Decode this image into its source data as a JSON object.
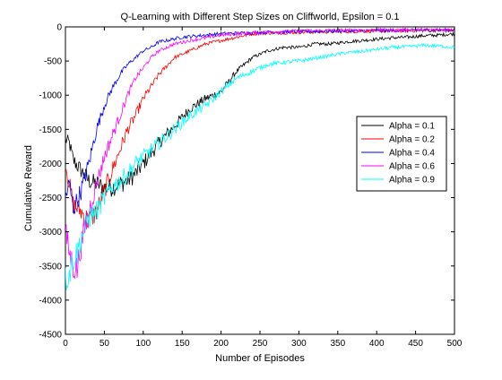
{
  "chart_data": {
    "type": "line",
    "title": "Q-Learning with Different Step Sizes on Cliffworld, Epsilon = 0.1",
    "xlabel": "Number of Episodes",
    "ylabel": "Cumulative Reward",
    "xlim": [
      0,
      500
    ],
    "ylim": [
      -4500,
      0
    ],
    "xticks": [
      0,
      50,
      100,
      150,
      200,
      250,
      300,
      350,
      400,
      450,
      500
    ],
    "yticks": [
      -4500,
      -4000,
      -3500,
      -3000,
      -2500,
      -2000,
      -1500,
      -1000,
      -500,
      0
    ],
    "grid": false,
    "legend_position": "right",
    "series": [
      {
        "name": "Alpha = 0.1",
        "color": "#000000",
        "points": [
          [
            0,
            -1650
          ],
          [
            5,
            -1700
          ],
          [
            10,
            -1950
          ],
          [
            20,
            -2100
          ],
          [
            30,
            -2250
          ],
          [
            40,
            -2300
          ],
          [
            50,
            -2350
          ],
          [
            60,
            -2350
          ],
          [
            70,
            -2300
          ],
          [
            80,
            -2250
          ],
          [
            90,
            -2150
          ],
          [
            100,
            -2000
          ],
          [
            120,
            -1700
          ],
          [
            140,
            -1450
          ],
          [
            160,
            -1200
          ],
          [
            180,
            -1050
          ],
          [
            200,
            -950
          ],
          [
            220,
            -650
          ],
          [
            240,
            -450
          ],
          [
            260,
            -350
          ],
          [
            280,
            -300
          ],
          [
            300,
            -300
          ],
          [
            320,
            -250
          ],
          [
            340,
            -250
          ],
          [
            360,
            -220
          ],
          [
            380,
            -200
          ],
          [
            400,
            -180
          ],
          [
            420,
            -160
          ],
          [
            440,
            -150
          ],
          [
            460,
            -130
          ],
          [
            480,
            -120
          ],
          [
            500,
            -100
          ]
        ]
      },
      {
        "name": "Alpha = 0.2",
        "color": "#ff0000",
        "points": [
          [
            0,
            -2000
          ],
          [
            5,
            -2300
          ],
          [
            10,
            -2600
          ],
          [
            20,
            -2700
          ],
          [
            30,
            -2850
          ],
          [
            40,
            -2700
          ],
          [
            50,
            -2400
          ],
          [
            60,
            -2100
          ],
          [
            70,
            -1800
          ],
          [
            80,
            -1500
          ],
          [
            90,
            -1300
          ],
          [
            100,
            -1050
          ],
          [
            120,
            -700
          ],
          [
            140,
            -450
          ],
          [
            160,
            -350
          ],
          [
            180,
            -250
          ],
          [
            200,
            -200
          ],
          [
            220,
            -150
          ],
          [
            240,
            -100
          ],
          [
            260,
            -90
          ],
          [
            300,
            -80
          ],
          [
            350,
            -70
          ],
          [
            400,
            -60
          ],
          [
            450,
            -55
          ],
          [
            500,
            -50
          ]
        ]
      },
      {
        "name": "Alpha = 0.4",
        "color": "#0000ff",
        "points": [
          [
            0,
            -2500
          ],
          [
            5,
            -2300
          ],
          [
            10,
            -2650
          ],
          [
            15,
            -2550
          ],
          [
            20,
            -2400
          ],
          [
            30,
            -2000
          ],
          [
            40,
            -1500
          ],
          [
            50,
            -1150
          ],
          [
            60,
            -900
          ],
          [
            70,
            -700
          ],
          [
            80,
            -550
          ],
          [
            90,
            -450
          ],
          [
            100,
            -350
          ],
          [
            110,
            -300
          ],
          [
            120,
            -220
          ],
          [
            130,
            -200
          ],
          [
            150,
            -150
          ],
          [
            200,
            -100
          ],
          [
            250,
            -80
          ],
          [
            300,
            -70
          ],
          [
            350,
            -60
          ],
          [
            400,
            -55
          ],
          [
            450,
            -50
          ],
          [
            500,
            -45
          ]
        ]
      },
      {
        "name": "Alpha = 0.6",
        "color": "#ff00ff",
        "points": [
          [
            0,
            -3000
          ],
          [
            5,
            -3300
          ],
          [
            10,
            -3500
          ],
          [
            15,
            -3550
          ],
          [
            20,
            -3200
          ],
          [
            30,
            -2700
          ],
          [
            40,
            -2300
          ],
          [
            50,
            -1900
          ],
          [
            60,
            -1600
          ],
          [
            70,
            -1300
          ],
          [
            80,
            -1000
          ],
          [
            90,
            -750
          ],
          [
            100,
            -600
          ],
          [
            110,
            -450
          ],
          [
            120,
            -350
          ],
          [
            140,
            -250
          ],
          [
            160,
            -200
          ],
          [
            200,
            -120
          ],
          [
            250,
            -80
          ],
          [
            300,
            -60
          ],
          [
            350,
            -50
          ],
          [
            400,
            -45
          ],
          [
            450,
            -40
          ],
          [
            500,
            -40
          ]
        ]
      },
      {
        "name": "Alpha = 0.9",
        "color": "#00ffff",
        "points": [
          [
            0,
            -3700
          ],
          [
            5,
            -3600
          ],
          [
            10,
            -3400
          ],
          [
            15,
            -3300
          ],
          [
            20,
            -3100
          ],
          [
            30,
            -2800
          ],
          [
            40,
            -2700
          ],
          [
            50,
            -2500
          ],
          [
            60,
            -2350
          ],
          [
            70,
            -2250
          ],
          [
            80,
            -2150
          ],
          [
            90,
            -2000
          ],
          [
            100,
            -1900
          ],
          [
            120,
            -1700
          ],
          [
            140,
            -1500
          ],
          [
            160,
            -1300
          ],
          [
            180,
            -1150
          ],
          [
            200,
            -950
          ],
          [
            220,
            -750
          ],
          [
            240,
            -650
          ],
          [
            260,
            -550
          ],
          [
            280,
            -520
          ],
          [
            300,
            -500
          ],
          [
            320,
            -460
          ],
          [
            340,
            -420
          ],
          [
            360,
            -380
          ],
          [
            380,
            -360
          ],
          [
            400,
            -330
          ],
          [
            420,
            -300
          ],
          [
            440,
            -290
          ],
          [
            460,
            -270
          ],
          [
            480,
            -280
          ],
          [
            500,
            -300
          ]
        ]
      }
    ]
  }
}
